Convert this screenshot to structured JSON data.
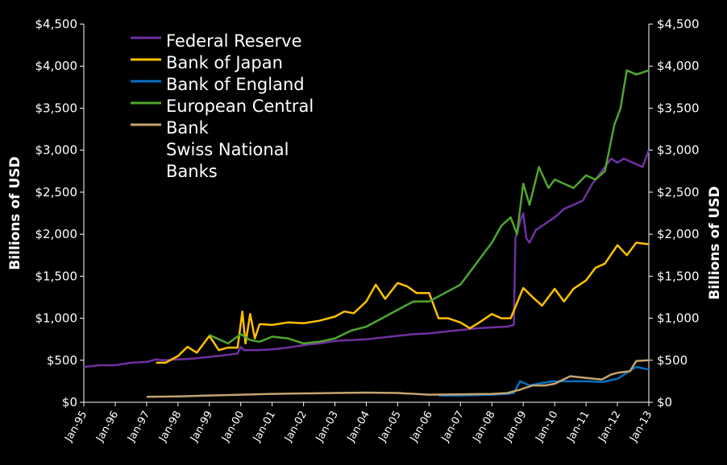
{
  "chart_data": {
    "type": "line",
    "ylabel_left": "Billions of  USD",
    "ylabel_right": "Billions of USD",
    "ylim": [
      0,
      4500
    ],
    "yticks": [
      "$0",
      "$500",
      "$1,000",
      "$1,500",
      "$2,000",
      "$2,500",
      "$3,000",
      "$3,500",
      "$4,000",
      "$4,500"
    ],
    "xticks": [
      "Jan-95",
      "Jan-96",
      "Jan-97",
      "Jan-98",
      "Jan-99",
      "Jan-00",
      "Jan-01",
      "Jan-02",
      "Jan-03",
      "Jan-04",
      "Jan-05",
      "Jan-06",
      "Jan-07",
      "Jan-08",
      "Jan-09",
      "Jan-10",
      "Jan-11",
      "Jan-12",
      "Jan-13"
    ],
    "x_range": [
      "Jan-95",
      "Jan-13"
    ],
    "grid": false,
    "legend_position": "top-left",
    "legend_labels": [
      "Federal Reserve",
      "Bank of Japan",
      "Bank of England",
      "European Central",
      "Bank",
      "Swiss National",
      "Banks"
    ],
    "series": [
      {
        "name": "Federal Reserve",
        "color": "#7030a0",
        "x": [
          1995.0,
          1995.5,
          1996.0,
          1996.5,
          1997.0,
          1997.3,
          1997.5,
          1998.0,
          1998.5,
          1999.0,
          1999.5,
          1999.9,
          2000.0,
          2000.1,
          2000.5,
          2001.0,
          2001.5,
          2002.0,
          2002.5,
          2003.0,
          2003.5,
          2004.0,
          2004.5,
          2005.0,
          2005.5,
          2006.0,
          2006.5,
          2007.0,
          2007.5,
          2008.0,
          2008.5,
          2008.7,
          2008.75,
          2008.9,
          2009.0,
          2009.1,
          2009.2,
          2009.4,
          2009.6,
          2009.8,
          2010.0,
          2010.3,
          2010.6,
          2010.9,
          2011.2,
          2011.5,
          2011.8,
          2012.0,
          2012.2,
          2012.5,
          2012.8,
          2013.0
        ],
        "values": [
          420,
          440,
          440,
          470,
          480,
          510,
          500,
          510,
          520,
          540,
          560,
          580,
          660,
          620,
          620,
          630,
          650,
          680,
          700,
          730,
          740,
          750,
          770,
          790,
          810,
          820,
          840,
          860,
          880,
          890,
          900,
          920,
          1950,
          2150,
          2250,
          1950,
          1900,
          2050,
          2100,
          2150,
          2200,
          2300,
          2350,
          2400,
          2600,
          2750,
          2900,
          2850,
          2900,
          2850,
          2800,
          3000
        ]
      },
      {
        "name": "Bank of Japan",
        "color": "#ffc000",
        "x": [
          1997.3,
          1997.6,
          1998.0,
          1998.3,
          1998.6,
          1999.0,
          1999.3,
          1999.6,
          1999.9,
          2000.05,
          2000.15,
          2000.3,
          2000.45,
          2000.6,
          2001.0,
          2001.5,
          2002.0,
          2002.5,
          2003.0,
          2003.3,
          2003.6,
          2004.0,
          2004.3,
          2004.6,
          2005.0,
          2005.3,
          2005.6,
          2006.0,
          2006.3,
          2006.6,
          2007.0,
          2007.3,
          2007.6,
          2008.0,
          2008.3,
          2008.6,
          2009.0,
          2009.3,
          2009.6,
          2010.0,
          2010.3,
          2010.6,
          2011.0,
          2011.3,
          2011.6,
          2012.0,
          2012.3,
          2012.6,
          2013.0
        ],
        "values": [
          470,
          470,
          550,
          660,
          590,
          790,
          620,
          650,
          650,
          1080,
          700,
          1050,
          760,
          930,
          920,
          950,
          940,
          970,
          1020,
          1080,
          1060,
          1200,
          1400,
          1230,
          1420,
          1380,
          1300,
          1300,
          1000,
          1000,
          950,
          880,
          950,
          1050,
          1000,
          1000,
          1360,
          1250,
          1150,
          1350,
          1200,
          1350,
          1450,
          1600,
          1650,
          1870,
          1750,
          1900,
          1880
        ]
      },
      {
        "name": "Bank of England",
        "color": "#0070c0",
        "x": [
          2006.3,
          2007.0,
          2008.0,
          2008.5,
          2008.7,
          2008.9,
          2009.2,
          2009.6,
          2010.0,
          2010.5,
          2011.0,
          2011.5,
          2012.0,
          2012.3,
          2012.6,
          2013.0
        ],
        "values": [
          80,
          80,
          90,
          100,
          110,
          250,
          200,
          230,
          250,
          250,
          250,
          240,
          280,
          350,
          420,
          390
        ]
      },
      {
        "name": "European Central Bank",
        "color": "#4ea72e",
        "x": [
          1999.0,
          1999.3,
          1999.6,
          2000.0,
          2000.3,
          2000.6,
          2001.0,
          2001.5,
          2002.0,
          2002.5,
          2003.0,
          2003.5,
          2004.0,
          2004.5,
          2005.0,
          2005.5,
          2006.0,
          2006.5,
          2007.0,
          2007.3,
          2007.6,
          2008.0,
          2008.3,
          2008.6,
          2008.8,
          2009.0,
          2009.2,
          2009.5,
          2009.8,
          2010.0,
          2010.3,
          2010.6,
          2011.0,
          2011.3,
          2011.6,
          2011.9,
          2012.1,
          2012.3,
          2012.6,
          2013.0
        ],
        "values": [
          800,
          750,
          700,
          810,
          740,
          720,
          780,
          760,
          700,
          720,
          760,
          850,
          900,
          1000,
          1100,
          1200,
          1200,
          1300,
          1400,
          1550,
          1700,
          1900,
          2100,
          2200,
          2000,
          2600,
          2350,
          2800,
          2550,
          2650,
          2600,
          2550,
          2700,
          2650,
          2750,
          3300,
          3500,
          3950,
          3900,
          3950
        ]
      },
      {
        "name": "Swiss National Banks",
        "color": "#c4a46e",
        "x": [
          1997.0,
          1998.0,
          1999.0,
          2000.0,
          2001.0,
          2002.0,
          2003.0,
          2004.0,
          2005.0,
          2006.0,
          2007.0,
          2008.0,
          2008.5,
          2008.9,
          2009.3,
          2009.7,
          2010.0,
          2010.5,
          2011.0,
          2011.5,
          2011.8,
          2012.0,
          2012.4,
          2012.6,
          2013.0
        ],
        "values": [
          65,
          70,
          80,
          90,
          100,
          105,
          110,
          115,
          110,
          90,
          95,
          100,
          110,
          150,
          200,
          200,
          220,
          310,
          290,
          270,
          330,
          350,
          370,
          490,
          500
        ]
      }
    ]
  }
}
